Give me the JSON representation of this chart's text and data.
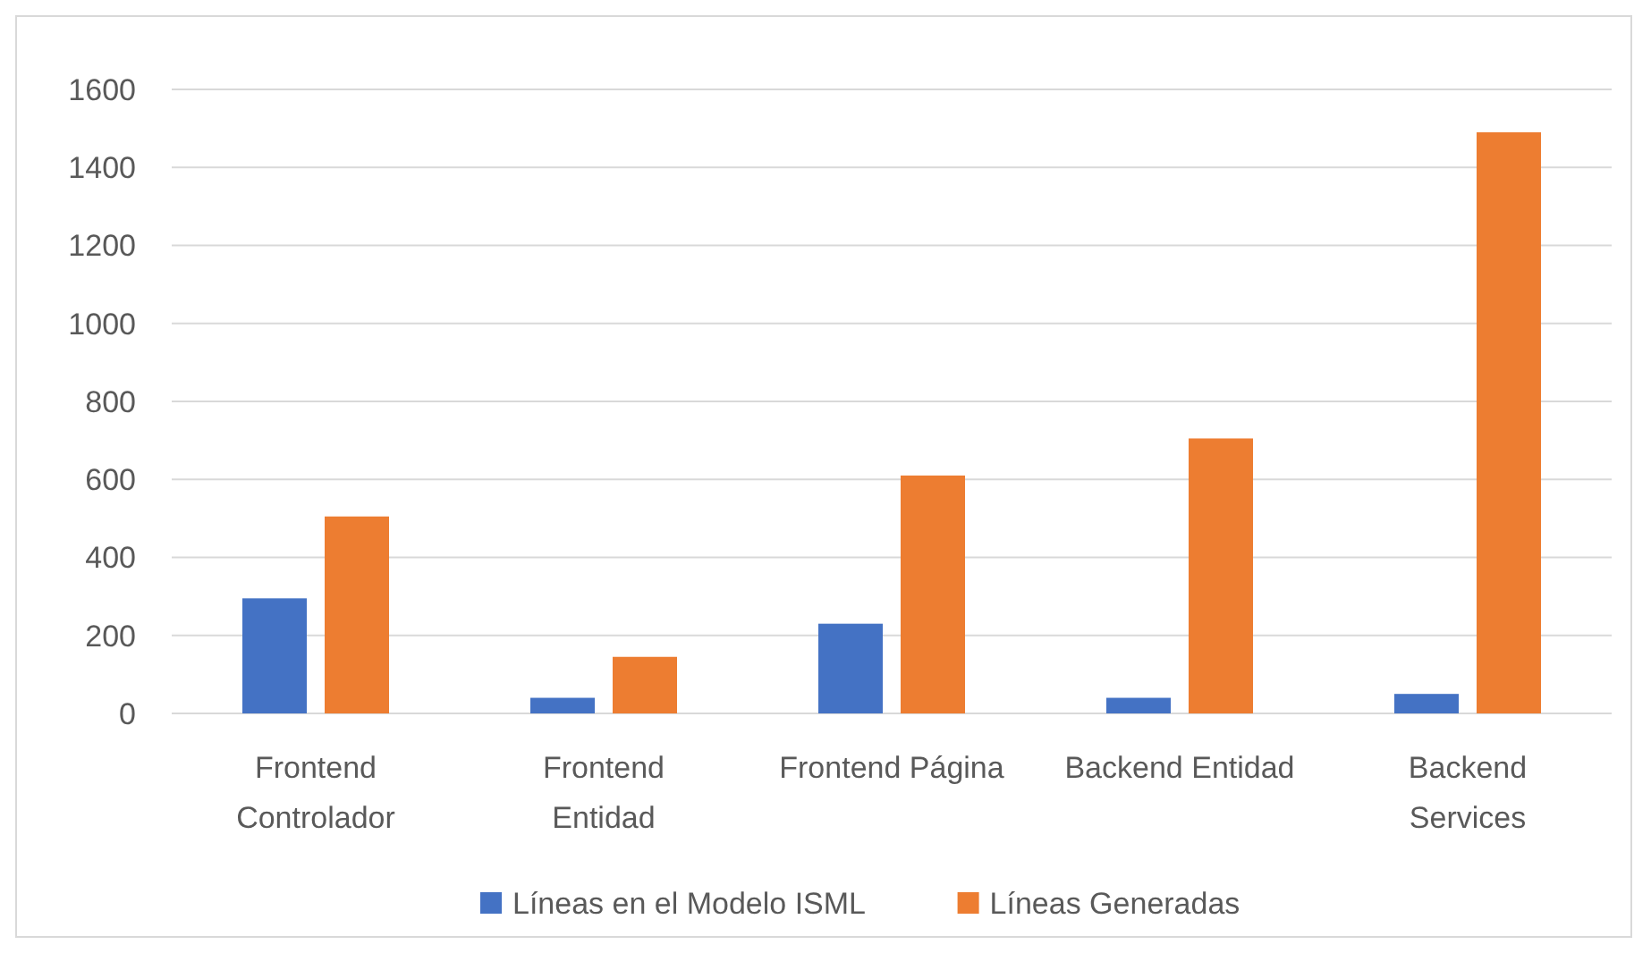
{
  "chart_data": {
    "type": "bar",
    "categories": [
      "Frontend Controlador",
      "Frontend Entidad",
      "Frontend Página",
      "Backend Entidad",
      "Backend Services"
    ],
    "series": [
      {
        "name": "Líneas en el Modelo ISML",
        "color": "#4472c4",
        "values": [
          295,
          40,
          230,
          40,
          50
        ]
      },
      {
        "name": "Líneas Generadas",
        "color": "#ed7d31",
        "values": [
          505,
          145,
          610,
          705,
          1490
        ]
      }
    ],
    "ylim": [
      0,
      1600
    ],
    "yticks": [
      0,
      200,
      400,
      600,
      800,
      1000,
      1200,
      1400,
      1600
    ],
    "grid": "y",
    "legend": "bottom"
  }
}
